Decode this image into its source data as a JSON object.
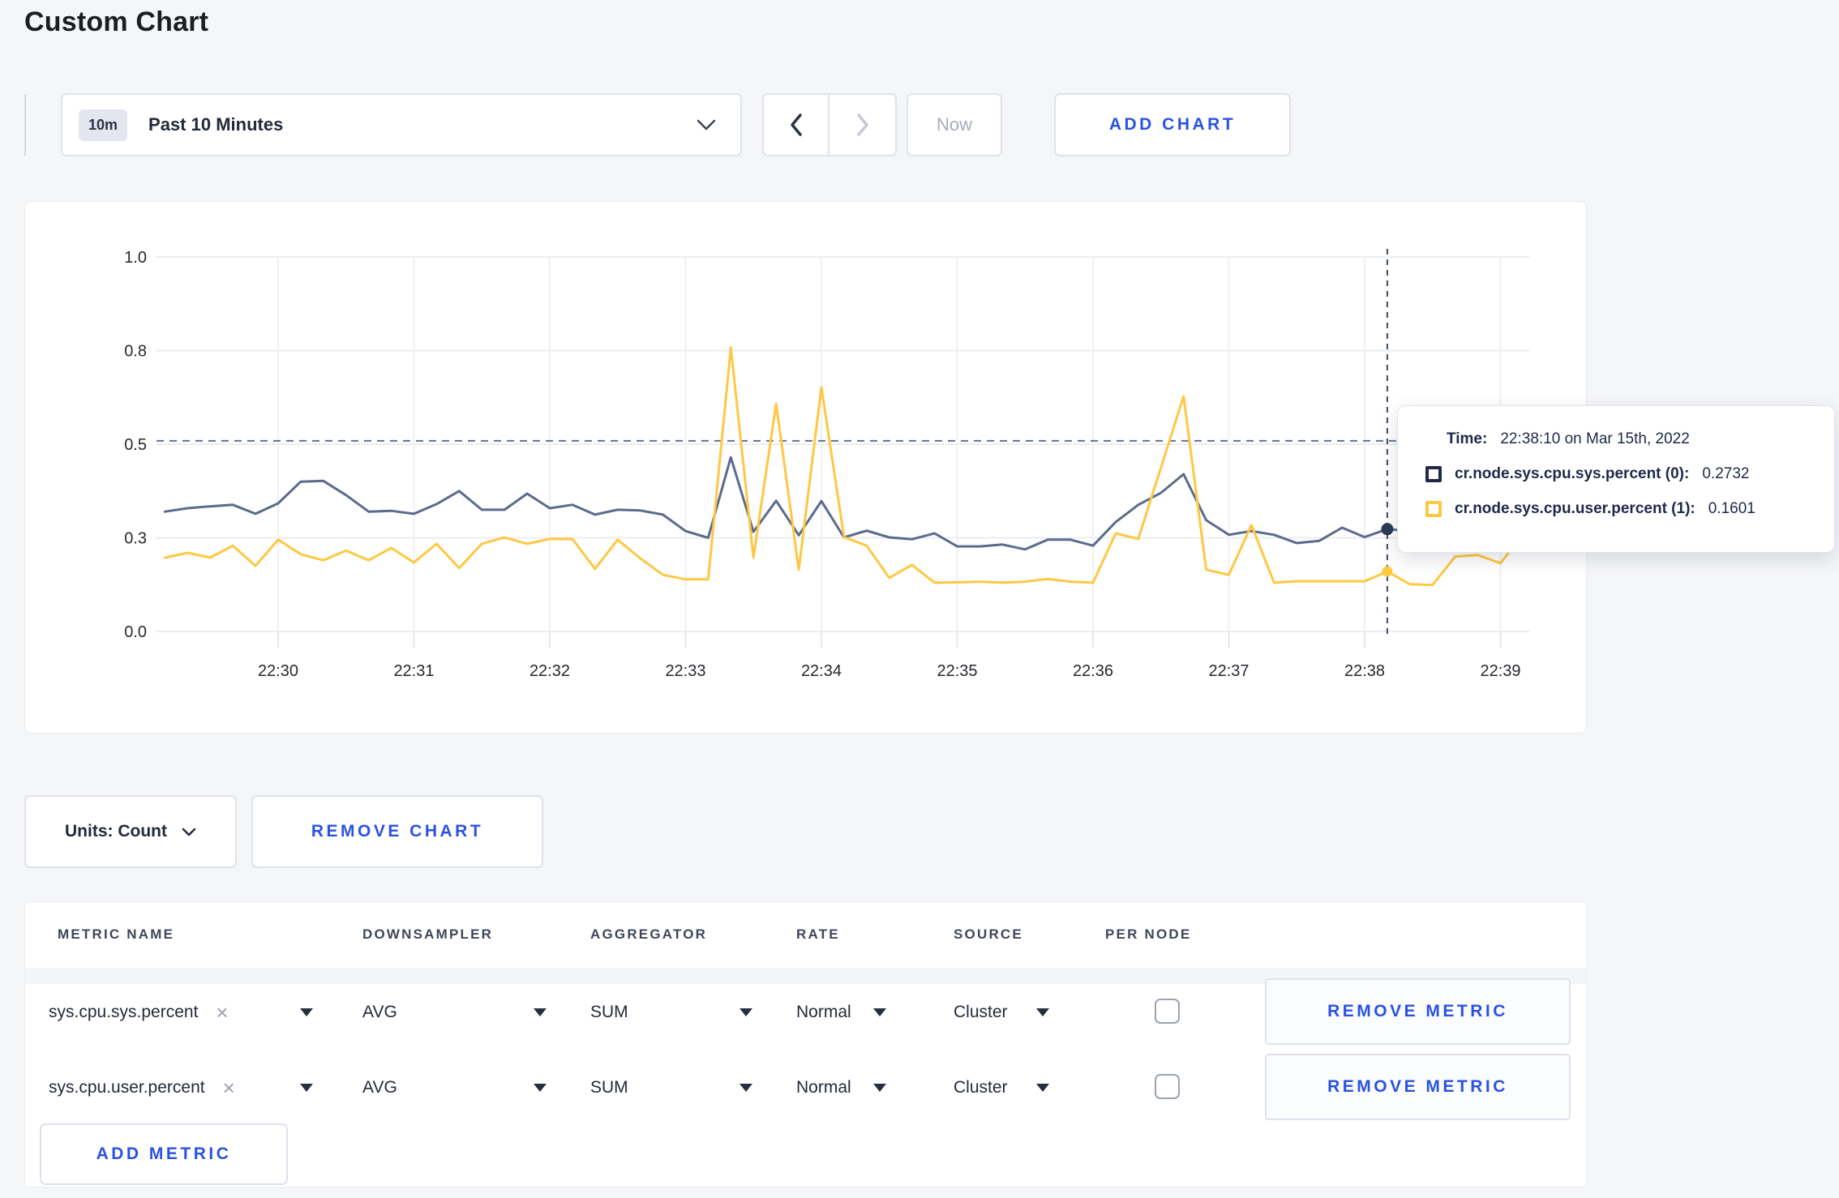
{
  "page": {
    "title": "Custom Chart"
  },
  "toolbar": {
    "time_badge": "10m",
    "time_label": "Past 10 Minutes",
    "now_label": "Now",
    "add_chart_label": "ADD CHART"
  },
  "units_bar": {
    "units_label": "Units: Count",
    "remove_chart_label": "REMOVE CHART"
  },
  "metrics_table": {
    "headers": [
      "METRIC NAME",
      "DOWNSAMPLER",
      "AGGREGATOR",
      "RATE",
      "SOURCE",
      "PER NODE"
    ],
    "close_glyph": "×",
    "rows": [
      {
        "name": "sys.cpu.sys.percent",
        "downsampler": "AVG",
        "aggregator": "SUM",
        "rate": "Normal",
        "source": "Cluster",
        "per_node_checked": false,
        "remove_label": "REMOVE METRIC"
      },
      {
        "name": "sys.cpu.user.percent",
        "downsampler": "AVG",
        "aggregator": "SUM",
        "rate": "Normal",
        "source": "Cluster",
        "per_node_checked": false,
        "remove_label": "REMOVE METRIC"
      }
    ],
    "add_metric_label": "ADD METRIC"
  },
  "chart_data": {
    "type": "line",
    "title": "",
    "x_axis": {
      "t_unit": "seconds since 22:29:10",
      "t_range": [
        0,
        600
      ],
      "ticks_t": [
        50,
        110,
        170,
        230,
        290,
        350,
        410,
        470,
        530,
        590
      ],
      "tick_labels": [
        "22:30",
        "22:31",
        "22:32",
        "22:33",
        "22:34",
        "22:35",
        "22:36",
        "22:37",
        "22:38",
        "22:39"
      ]
    },
    "y_axis": {
      "range": [
        0,
        1
      ],
      "ticks_v": [
        0,
        0.25,
        0.5,
        0.75,
        1
      ],
      "tick_labels": [
        "0.0",
        "0.3",
        "0.5",
        "0.8",
        "1.0"
      ]
    },
    "grid": true,
    "legend_position": "tooltip",
    "guide_hline_value": 0.509,
    "series": [
      {
        "name": "cr.node.sys.cpu.sys.percent (0)",
        "color": "#5b6b8c",
        "t0": 0,
        "t_step": 10,
        "values": [
          0.32,
          0.329,
          0.334,
          0.338,
          0.314,
          0.342,
          0.4,
          0.402,
          0.364,
          0.32,
          0.322,
          0.314,
          0.34,
          0.375,
          0.325,
          0.325,
          0.368,
          0.329,
          0.338,
          0.312,
          0.325,
          0.323,
          0.312,
          0.268,
          0.25,
          0.465,
          0.266,
          0.349,
          0.257,
          0.348,
          0.251,
          0.269,
          0.251,
          0.246,
          0.262,
          0.227,
          0.227,
          0.232,
          0.219,
          0.245,
          0.245,
          0.229,
          0.292,
          0.338,
          0.37,
          0.42,
          0.297,
          0.258,
          0.268,
          0.258,
          0.236,
          0.242,
          0.277,
          0.252,
          0.2732,
          0.268,
          0.265,
          0.27,
          0.266,
          0.272,
          0.27
        ]
      },
      {
        "name": "cr.node.sys.cpu.user.percent (1)",
        "color": "#ffc843",
        "t0": 0,
        "t_step": 10,
        "values": [
          0.197,
          0.21,
          0.197,
          0.229,
          0.175,
          0.245,
          0.206,
          0.19,
          0.216,
          0.19,
          0.223,
          0.184,
          0.234,
          0.169,
          0.234,
          0.251,
          0.234,
          0.247,
          0.247,
          0.167,
          0.245,
          0.195,
          0.151,
          0.139,
          0.139,
          0.758,
          0.197,
          0.608,
          0.165,
          0.652,
          0.252,
          0.229,
          0.143,
          0.178,
          0.13,
          0.131,
          0.133,
          0.13,
          0.133,
          0.14,
          0.133,
          0.13,
          0.262,
          0.247,
          0.437,
          0.628,
          0.165,
          0.151,
          0.284,
          0.13,
          0.134,
          0.134,
          0.134,
          0.134,
          0.1601,
          0.126,
          0.124,
          0.2,
          0.204,
          0.182,
          0.26
        ]
      }
    ],
    "crosshair": {
      "t": 540,
      "points": [
        {
          "value": 0.2732,
          "color": "#2c3a55",
          "r": 7.5
        },
        {
          "value": 0.1601,
          "color": "#ffc843",
          "r": 6.5
        }
      ]
    },
    "tooltip": {
      "time_label": "Time:",
      "time_value": "22:38:10 on Mar 15th, 2022",
      "entries": [
        {
          "name": "cr.node.sys.cpu.sys.percent (0):",
          "value": "0.2732",
          "swatch_color": "#1e2949"
        },
        {
          "name": "cr.node.sys.cpu.user.percent (1):",
          "value": "0.1601",
          "swatch_color": "#ffc843"
        }
      ]
    }
  }
}
